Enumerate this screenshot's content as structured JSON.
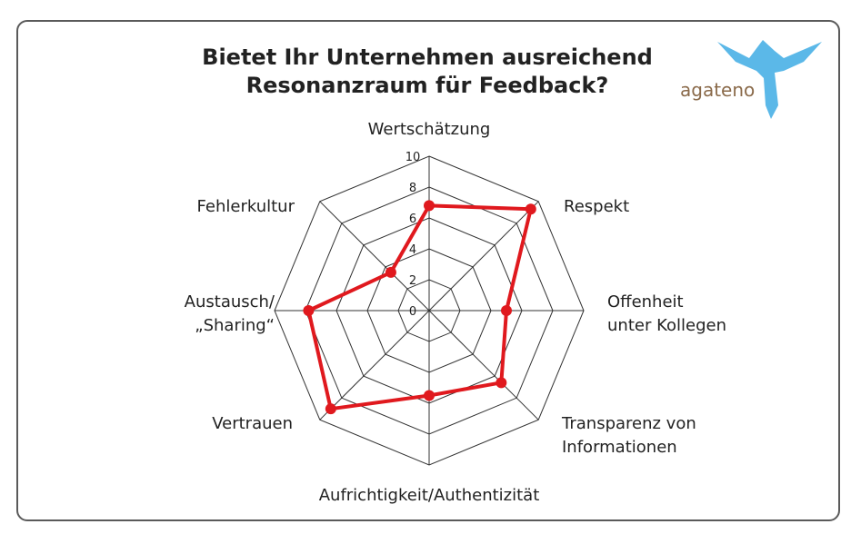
{
  "title_line1": "Bietet Ihr Unternehmen ausreichend",
  "title_line2": "Resonanzraum für Feedback?",
  "logo": {
    "text": "agateno",
    "icon": "eagle-icon",
    "icon_color": "#5bb8e8",
    "text_color": "#8a6a4a"
  },
  "colors": {
    "series": "#e0191e",
    "grid": "#333333"
  },
  "chart_data": {
    "type": "radar",
    "title": "Bietet Ihr Unternehmen ausreichend Resonanzraum für Feedback?",
    "axes": [
      "Wertschätzung",
      "Respekt",
      "Offenheit unter Kollegen",
      "Transparenz von Informationen",
      "Aufrichtigkeit/Authentizität",
      "Vertrauen",
      "Austausch/ „Sharing“",
      "Fehlerkultur"
    ],
    "ticks": [
      "0",
      "2",
      "4",
      "6",
      "8",
      "10"
    ],
    "range": [
      0,
      10
    ],
    "series": [
      {
        "values": [
          6.8,
          9.3,
          5.0,
          6.6,
          5.5,
          9.0,
          7.8,
          3.5
        ]
      }
    ]
  }
}
